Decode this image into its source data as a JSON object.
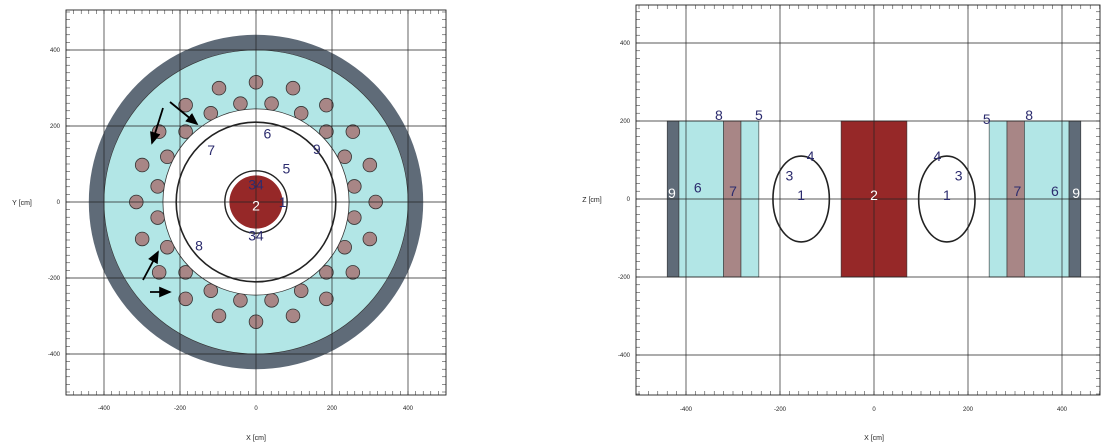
{
  "colors": {
    "cyan": "#b2e6e6",
    "slate": "#5f6b78",
    "rod": "#a88686",
    "core": "#962828",
    "grid": "#222222",
    "label": "#2c2c6e"
  },
  "left_panel": {
    "x_axis_label": "X [cm]",
    "y_axis_label": "Y [cm]",
    "x_ticks": [
      {
        "v": -400,
        "t": "-400"
      },
      {
        "v": -200,
        "t": "-200"
      },
      {
        "v": 0,
        "t": "0"
      },
      {
        "v": 200,
        "t": "200"
      },
      {
        "v": 400,
        "t": "400"
      }
    ],
    "y_ticks": [
      {
        "v": 400,
        "t": "400"
      },
      {
        "v": 200,
        "t": "200"
      },
      {
        "v": 0,
        "t": "0"
      },
      {
        "v": -200,
        "t": "-200"
      },
      {
        "v": -400,
        "t": "-400"
      }
    ],
    "grid_x": [
      -400,
      -200,
      0,
      200,
      400
    ],
    "grid_y": [
      -400,
      -200,
      0,
      200,
      400
    ],
    "outer_vessel_radius_cm": 440,
    "blanket_outer_radius_cm": 400,
    "cavity_radius_cm": 245,
    "region_boundary_radius_cm": 210,
    "core_radius_cm": 70,
    "core_ring_radius_cm": 82,
    "rod_ring_inner_radius_cm": 262,
    "rod_ring_outer_radius_cm": 315,
    "rod_radius_cm": 18,
    "rods_per_ring": 20,
    "labels": [
      {
        "t": "1",
        "x": 70,
        "y": 0
      },
      {
        "t": "2",
        "x": 0,
        "y": -9
      },
      {
        "t": "3",
        "x": -10,
        "y": 46
      },
      {
        "t": "4",
        "x": 10,
        "y": 46
      },
      {
        "t": "3",
        "x": -10,
        "y": -88
      },
      {
        "t": "4",
        "x": 10,
        "y": -88
      },
      {
        "t": "5",
        "x": 80,
        "y": 88
      },
      {
        "t": "6",
        "x": 30,
        "y": 180
      },
      {
        "t": "7",
        "x": -118,
        "y": 137
      },
      {
        "t": "8",
        "x": -150,
        "y": -115
      },
      {
        "t": "9",
        "x": 160,
        "y": 140
      }
    ]
  },
  "right_panel": {
    "x_axis_label": "X [cm]",
    "y_axis_label": "Z [cm]",
    "x_ticks": [
      {
        "v": -400,
        "t": "-400"
      },
      {
        "v": -200,
        "t": "-200"
      },
      {
        "v": 0,
        "t": "0"
      },
      {
        "v": 200,
        "t": "200"
      },
      {
        "v": 400,
        "t": "400"
      }
    ],
    "y_ticks": [
      {
        "v": 400,
        "t": "400"
      },
      {
        "v": 200,
        "t": "200"
      },
      {
        "v": 0,
        "t": "0"
      },
      {
        "v": -200,
        "t": "-200"
      },
      {
        "v": -400,
        "t": "-400"
      }
    ],
    "grid_x": [
      -400,
      -200,
      0,
      200,
      400
    ],
    "grid_y": [
      -400,
      -200,
      0,
      200,
      400
    ],
    "z_range_cm": [
      -200,
      200
    ],
    "core_half_width_cm": 70,
    "void_center_x_cm": 155,
    "void_half_width_cm": 60,
    "void_half_height_cm": 110,
    "bands_left": [
      {
        "x0": -440,
        "x1": -415,
        "color": "slate"
      },
      {
        "x0": -415,
        "x1": -320,
        "color": "cyan"
      },
      {
        "x0": -320,
        "x1": -283,
        "color": "rod"
      },
      {
        "x0": -283,
        "x1": -245,
        "color": "cyan"
      }
    ],
    "bands_right": [
      {
        "x0": 245,
        "x1": 283,
        "color": "cyan"
      },
      {
        "x0": 283,
        "x1": 320,
        "color": "rod"
      },
      {
        "x0": 320,
        "x1": 415,
        "color": "cyan"
      },
      {
        "x0": 415,
        "x1": 440,
        "color": "slate"
      }
    ],
    "labels": [
      {
        "t": "9",
        "x": -430,
        "y": 15
      },
      {
        "t": "6",
        "x": -375,
        "y": 30
      },
      {
        "t": "7",
        "x": -300,
        "y": 20
      },
      {
        "t": "8",
        "x": -330,
        "y": 215
      },
      {
        "t": "5",
        "x": -245,
        "y": 215
      },
      {
        "t": "3",
        "x": -180,
        "y": 60
      },
      {
        "t": "4",
        "x": -135,
        "y": 110
      },
      {
        "t": "1",
        "x": -155,
        "y": 10
      },
      {
        "t": "2",
        "x": 0,
        "y": 10
      },
      {
        "t": "4",
        "x": 135,
        "y": 110
      },
      {
        "t": "3",
        "x": 180,
        "y": 60
      },
      {
        "t": "1",
        "x": 155,
        "y": 10
      },
      {
        "t": "5",
        "x": 240,
        "y": 205
      },
      {
        "t": "8",
        "x": 330,
        "y": 215
      },
      {
        "t": "7",
        "x": 305,
        "y": 20
      },
      {
        "t": "6",
        "x": 385,
        "y": 20
      },
      {
        "t": "9",
        "x": 430,
        "y": 15
      }
    ]
  }
}
